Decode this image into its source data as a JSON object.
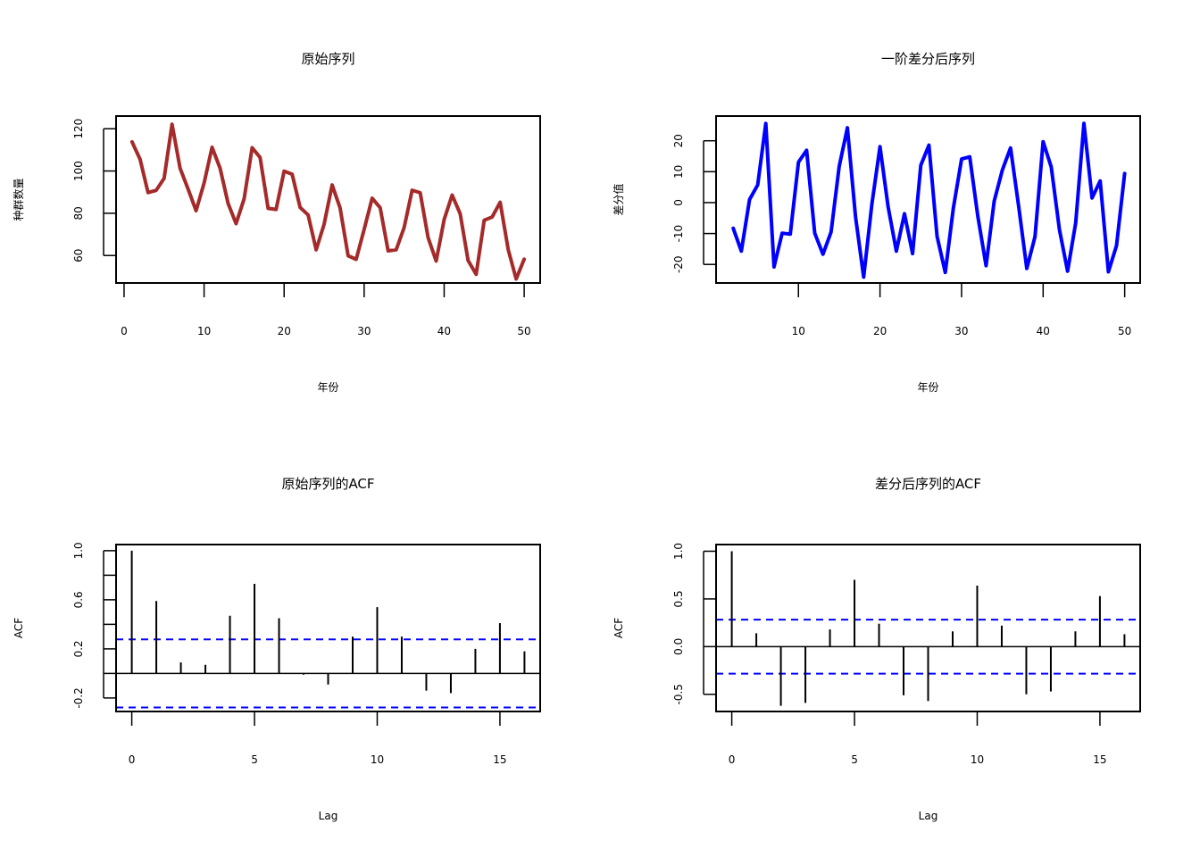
{
  "chart_data": [
    {
      "type": "line",
      "title": "原始序列",
      "xlabel": "年份",
      "ylabel": "种群数量",
      "color": "#a52a2a",
      "xlim": [
        -1,
        52
      ],
      "ylim": [
        47,
        126
      ],
      "xticks": [
        0,
        10,
        20,
        30,
        40,
        50
      ],
      "yticks": [
        60,
        80,
        100,
        120
      ],
      "x": [
        1,
        2,
        3,
        4,
        5,
        6,
        7,
        8,
        9,
        10,
        11,
        12,
        13,
        14,
        15,
        16,
        17,
        18,
        19,
        20,
        21,
        22,
        23,
        24,
        25,
        26,
        27,
        28,
        29,
        30,
        31,
        32,
        33,
        34,
        35,
        36,
        37,
        38,
        39,
        40,
        41,
        42,
        43,
        44,
        45,
        46,
        47,
        48,
        49,
        50
      ],
      "values": [
        113.8,
        105.5,
        89.8,
        90.8,
        96.5,
        122.1,
        101.3,
        91.4,
        81.2,
        94.3,
        111.2,
        101.3,
        84.6,
        75.1,
        86.8,
        111.0,
        106.4,
        82.3,
        81.8,
        99.9,
        98.5,
        82.8,
        79.2,
        62.7,
        74.8,
        93.4,
        82.5,
        59.9,
        58.2,
        72.3,
        87.1,
        82.6,
        62.2,
        62.7,
        73.2,
        90.9,
        89.7,
        68.4,
        57.4,
        77.1,
        88.6,
        79.8,
        57.6,
        51.1,
        76.7,
        78.2,
        85.2,
        62.8,
        48.9,
        58.3
      ]
    },
    {
      "type": "line",
      "title": "一阶差分后序列",
      "xlabel": "年份",
      "ylabel": "差分值",
      "color": "#0000ff",
      "xlim": [
        -0.1,
        51.9
      ],
      "ylim": [
        -26,
        28
      ],
      "xticks": [
        10,
        20,
        30,
        40,
        50
      ],
      "yticks": [
        -20,
        -10,
        0,
        10,
        20
      ],
      "x": [
        2,
        3,
        4,
        5,
        6,
        7,
        8,
        9,
        10,
        11,
        12,
        13,
        14,
        15,
        16,
        17,
        18,
        19,
        20,
        21,
        22,
        23,
        24,
        25,
        26,
        27,
        28,
        29,
        30,
        31,
        32,
        33,
        34,
        35,
        36,
        37,
        38,
        39,
        40,
        41,
        42,
        43,
        44,
        45,
        46,
        47,
        48,
        49,
        50
      ],
      "values": [
        -8.3,
        -15.7,
        1.0,
        5.7,
        25.6,
        -20.8,
        -9.9,
        -10.2,
        13.1,
        16.9,
        -9.9,
        -16.7,
        -9.5,
        11.7,
        24.2,
        -4.6,
        -24.1,
        -0.5,
        18.1,
        -1.4,
        -15.7,
        -3.6,
        -16.5,
        12.1,
        18.6,
        -10.9,
        -22.6,
        -1.7,
        14.1,
        14.8,
        -4.5,
        -20.4,
        0.5,
        10.5,
        17.7,
        -1.2,
        -21.3,
        -11.0,
        19.7,
        11.5,
        -8.8,
        -22.2,
        -6.5,
        25.6,
        1.5,
        7.0,
        -22.4,
        -13.9,
        9.4
      ]
    },
    {
      "type": "bar",
      "title": "原始序列的ACF",
      "xlabel": "Lag",
      "ylabel": "ACF",
      "color": "#000000",
      "ci_color": "#0000ff",
      "ci": 0.277,
      "xlim": [
        -0.64,
        16.64
      ],
      "ylim": [
        -0.31,
        1.05
      ],
      "xticks": [
        0,
        5,
        10,
        15
      ],
      "yticks": [
        -0.2,
        0.2,
        0.6,
        1.0
      ],
      "minor_yticks": [
        0.0,
        0.4,
        0.8
      ],
      "lags": [
        0,
        1,
        2,
        3,
        4,
        5,
        6,
        7,
        8,
        9,
        10,
        11,
        12,
        13,
        14,
        15,
        16
      ],
      "values": [
        1.0,
        0.59,
        0.09,
        0.07,
        0.47,
        0.73,
        0.45,
        -0.01,
        -0.09,
        0.3,
        0.54,
        0.3,
        -0.14,
        -0.16,
        0.2,
        0.41,
        0.18
      ]
    },
    {
      "type": "bar",
      "title": "差分后序列的ACF",
      "xlabel": "Lag",
      "ylabel": "ACF",
      "color": "#000000",
      "ci_color": "#0000ff",
      "ci": 0.283,
      "xlim": [
        -0.64,
        16.64
      ],
      "ylim": [
        -0.68,
        1.07
      ],
      "xticks": [
        0,
        5,
        10,
        15
      ],
      "yticks": [
        -0.5,
        0.0,
        0.5,
        1.0
      ],
      "lags": [
        0,
        1,
        2,
        3,
        4,
        5,
        6,
        7,
        8,
        9,
        10,
        11,
        12,
        13,
        14,
        15,
        16
      ],
      "values": [
        1.0,
        0.14,
        -0.62,
        -0.59,
        0.18,
        0.7,
        0.24,
        -0.51,
        -0.57,
        0.16,
        0.64,
        0.22,
        -0.5,
        -0.47,
        0.16,
        0.53,
        0.13
      ]
    }
  ]
}
